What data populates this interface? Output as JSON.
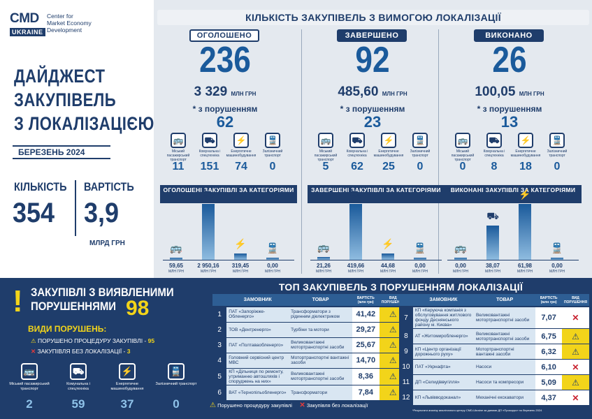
{
  "brand": {
    "cmd": "CMD",
    "ukraine": "UKRAINE",
    "line1": "Center for",
    "line2": "Market Economy",
    "line3": "Development"
  },
  "title": {
    "l1": "ДАЙДЖЕСТ",
    "l2": "ЗАКУПІВЕЛЬ",
    "l3": "З ЛОКАЛІЗАЦІЄЮ"
  },
  "month": "БЕРЕЗЕНЬ 2024",
  "kpi": {
    "count_label": "КІЛЬКІСТЬ",
    "count": "354",
    "sum_label": "ВАРТІСТЬ",
    "sum": "3,9",
    "sum_unit": "МЛРД ГРН"
  },
  "header": "КІЛЬКІСТЬ ЗАКУПІВЕЛЬ З ВИМОГОЮ ЛОКАЛІЗАЦІЇ",
  "columns": [
    {
      "label": "ОГОЛОШЕНО",
      "count": "236",
      "amount": "3 329",
      "amount_unit": "МЛН ГРН",
      "viol_label": "* з порушенням",
      "viol": "62",
      "cats": [
        "11",
        "151",
        "74",
        "0"
      ],
      "bar_title": "ОГОЛОШЕНІ ЗАКУПІВЛІ ЗА КАТЕГОРІЯМИ",
      "bars": [
        "59,65",
        "2 950,16",
        "319,45",
        "0,00"
      ]
    },
    {
      "label": "ЗАВЕРШЕНО",
      "count": "92",
      "amount": "485,60",
      "amount_unit": "МЛН ГРН",
      "viol_label": "* з порушенням",
      "viol": "23",
      "cats": [
        "5",
        "62",
        "25",
        "0"
      ],
      "bar_title": "ЗАВЕРШЕНІ ЗАКУПІВЛІ ЗА КАТЕГОРІЯМИ",
      "bars": [
        "21,26",
        "419,66",
        "44,68",
        "0,00"
      ]
    },
    {
      "label": "ВИКОНАНО",
      "count": "26",
      "amount": "100,05",
      "amount_unit": "МЛН ГРН",
      "viol_label": "* з порушенням",
      "viol": "13",
      "cats": [
        "0",
        "8",
        "18",
        "0"
      ],
      "bar_title": "ВИКОНАНІ ЗАКУПІВЛІ ЗА КАТЕГОРІЯМИ",
      "bars": [
        "0,00",
        "38,07",
        "61,98",
        "0,00"
      ]
    }
  ],
  "cat_labels": [
    "Міський пасажирський транспорт",
    "Комунальна і спецтехніка",
    "Енергетичне машинобудування",
    "Залізничний транспорт"
  ],
  "bar_unit": "МЛН ГРН",
  "bar_values": [
    [
      59.65,
      2950.16,
      319.45,
      0
    ],
    [
      21.26,
      419.66,
      44.68,
      0
    ],
    [
      0,
      38.07,
      61.98,
      0
    ]
  ],
  "violations": {
    "title1": "ЗАКУПІВЛІ З ВИЯВЛЕНИМИ",
    "title2": "ПОРУШЕННЯМИ",
    "count": "98",
    "types_title": "ВИДИ ПОРУШЕНЬ:",
    "t1": "ПОРУШЕНО ПРОЦЕДУРУ ЗАКУПІВЛІ -",
    "t1n": "95",
    "t2": "ЗАКУПІВЛЯ БЕЗ ЛОКАЛІЗАЦІЇ -",
    "t2n": "3",
    "cats": [
      "2",
      "59",
      "37",
      "0"
    ]
  },
  "top": {
    "title": "ТОП ЗАКУПІВЕЛЬ З ПОРУШЕННЯМ ЛОКАЛІЗАЦІЇ",
    "h_customer": "ЗАМОВНИК",
    "h_goods": "ТОВАР",
    "h_cost": "ВАРТІСТЬ (млн грн)",
    "h_kind": "ВИД ПОРУШЕННЯ",
    "left": [
      {
        "n": "1",
        "c": "ПАТ «Запоріжже-Обленерго»",
        "g": "Трансформатори з рідинним діелектриком",
        "v": "41,42",
        "k": "warn"
      },
      {
        "n": "2",
        "c": "ТОВ «Дентренерго»",
        "g": "Турбіни та мотори",
        "v": "29,27",
        "k": "warn"
      },
      {
        "n": "3",
        "c": "ПАТ «Полтаваобленерго»",
        "g": "Великовантажні мотортранспортні засоби",
        "v": "25,67",
        "k": "warn"
      },
      {
        "n": "4",
        "c": "Головний сервісний центр МВС",
        "g": "Мотортранспортні вантажні засоби",
        "v": "14,70",
        "k": "warn"
      },
      {
        "n": "5",
        "c": "КП «Дільниця по ремонту, утриманню автошляхів і споруджень на них»",
        "g": "Великовантажні мотортранспортні засоби",
        "v": "8,36",
        "k": "warn"
      },
      {
        "n": "6",
        "c": "ВАТ «Тернопільобленерго»",
        "g": "Трансформатори",
        "v": "7,84",
        "k": "warn"
      }
    ],
    "right": [
      {
        "n": "7",
        "c": "КП «Керуюча компанія з обслуговування житлового фонду Деснянського району м. Києва»",
        "g": "Великовантажні мотортранспортні засоби",
        "v": "7,07",
        "k": "x"
      },
      {
        "n": "8",
        "c": "АТ «Житомиробленерго»",
        "g": "Великовантажні мотортранспортні засоби",
        "v": "6,75",
        "k": "warn"
      },
      {
        "n": "9",
        "c": "КП «Центр організації дорожнього руху»",
        "g": "Мотортранспортні вантажні засоби",
        "v": "6,32",
        "k": "warn"
      },
      {
        "n": "10",
        "c": "ПАТ «Укрнафта»",
        "g": "Насоси",
        "v": "6,10",
        "k": "x"
      },
      {
        "n": "11",
        "c": "ДП «Селидіввугілля»",
        "g": "Насоси та компресори",
        "v": "5,09",
        "k": "warn"
      },
      {
        "n": "12",
        "c": "КП «Львівводоканал»",
        "g": "Механічні екскаватори",
        "v": "4,37",
        "k": "x"
      }
    ],
    "legend1": "Порушено процедуру закупівлі",
    "legend2": "Закупівля без локалізації",
    "footnote": "*Результати аналізу аналітичного центру CMD-Ukraine за даними ДП «Прозорро» по березень 2024"
  }
}
